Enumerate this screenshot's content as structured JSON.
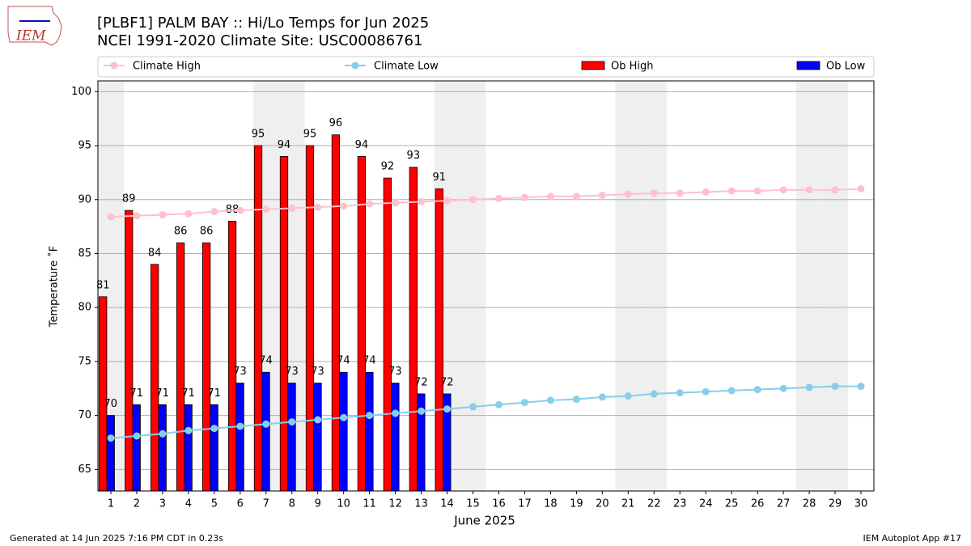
{
  "chart_data": {
    "type": "bar_line",
    "logo": "IEM",
    "title": "[PLBF1] PALM BAY :: Hi/Lo Temps for Jun 2025",
    "subtitle": "NCEI 1991-2020 Climate Site: USC00086761",
    "xlabel": "June 2025",
    "ylabel": "Temperature ˚F",
    "footer_left": "Generated at 14 Jun 2025 7:16 PM CDT in 0.23s",
    "footer_right": "IEM Autoplot App #17",
    "x": [
      1,
      2,
      3,
      4,
      5,
      6,
      7,
      8,
      9,
      10,
      11,
      12,
      13,
      14,
      15,
      16,
      17,
      18,
      19,
      20,
      21,
      22,
      23,
      24,
      25,
      26,
      27,
      28,
      29,
      30
    ],
    "xlim": [
      0.5,
      30.5
    ],
    "xticks": [
      1,
      2,
      3,
      4,
      5,
      6,
      7,
      8,
      9,
      10,
      11,
      12,
      13,
      14,
      15,
      16,
      17,
      18,
      19,
      20,
      21,
      22,
      23,
      24,
      25,
      26,
      27,
      28,
      29,
      30
    ],
    "ylim": [
      63,
      101
    ],
    "yticks": [
      65,
      70,
      75,
      80,
      85,
      90,
      95,
      100
    ],
    "grid": true,
    "shaded_days": [
      1,
      7,
      8,
      14,
      15,
      21,
      22,
      28,
      29
    ],
    "series": [
      {
        "name": "Climate High",
        "kind": "line",
        "color": "#ffc0cb",
        "values": [
          88.4,
          88.5,
          88.6,
          88.7,
          88.9,
          89.0,
          89.1,
          89.2,
          89.3,
          89.4,
          89.6,
          89.7,
          89.8,
          89.9,
          90.0,
          90.1,
          90.2,
          90.3,
          90.3,
          90.4,
          90.5,
          90.6,
          90.6,
          90.7,
          90.8,
          90.8,
          90.9,
          90.9,
          90.9,
          91.0
        ]
      },
      {
        "name": "Climate Low",
        "kind": "line",
        "color": "#87ceeb",
        "values": [
          67.9,
          68.1,
          68.3,
          68.6,
          68.8,
          69.0,
          69.2,
          69.4,
          69.6,
          69.8,
          70.0,
          70.2,
          70.4,
          70.6,
          70.8,
          71.0,
          71.2,
          71.4,
          71.5,
          71.7,
          71.8,
          72.0,
          72.1,
          72.2,
          72.3,
          72.4,
          72.5,
          72.6,
          72.7,
          72.7
        ]
      },
      {
        "name": "Ob High",
        "kind": "bar",
        "color": "#ff0000",
        "values": [
          81,
          89,
          84,
          86,
          86,
          88,
          95,
          94,
          95,
          96,
          94,
          92,
          93,
          91,
          null,
          null,
          null,
          null,
          null,
          null,
          null,
          null,
          null,
          null,
          null,
          null,
          null,
          null,
          null,
          null
        ]
      },
      {
        "name": "Ob Low",
        "kind": "bar",
        "color": "#0000ff",
        "values": [
          70,
          71,
          71,
          71,
          71,
          73,
          74,
          73,
          73,
          74,
          74,
          73,
          72,
          72,
          null,
          null,
          null,
          null,
          null,
          null,
          null,
          null,
          null,
          null,
          null,
          null,
          null,
          null,
          null,
          null
        ]
      }
    ]
  }
}
